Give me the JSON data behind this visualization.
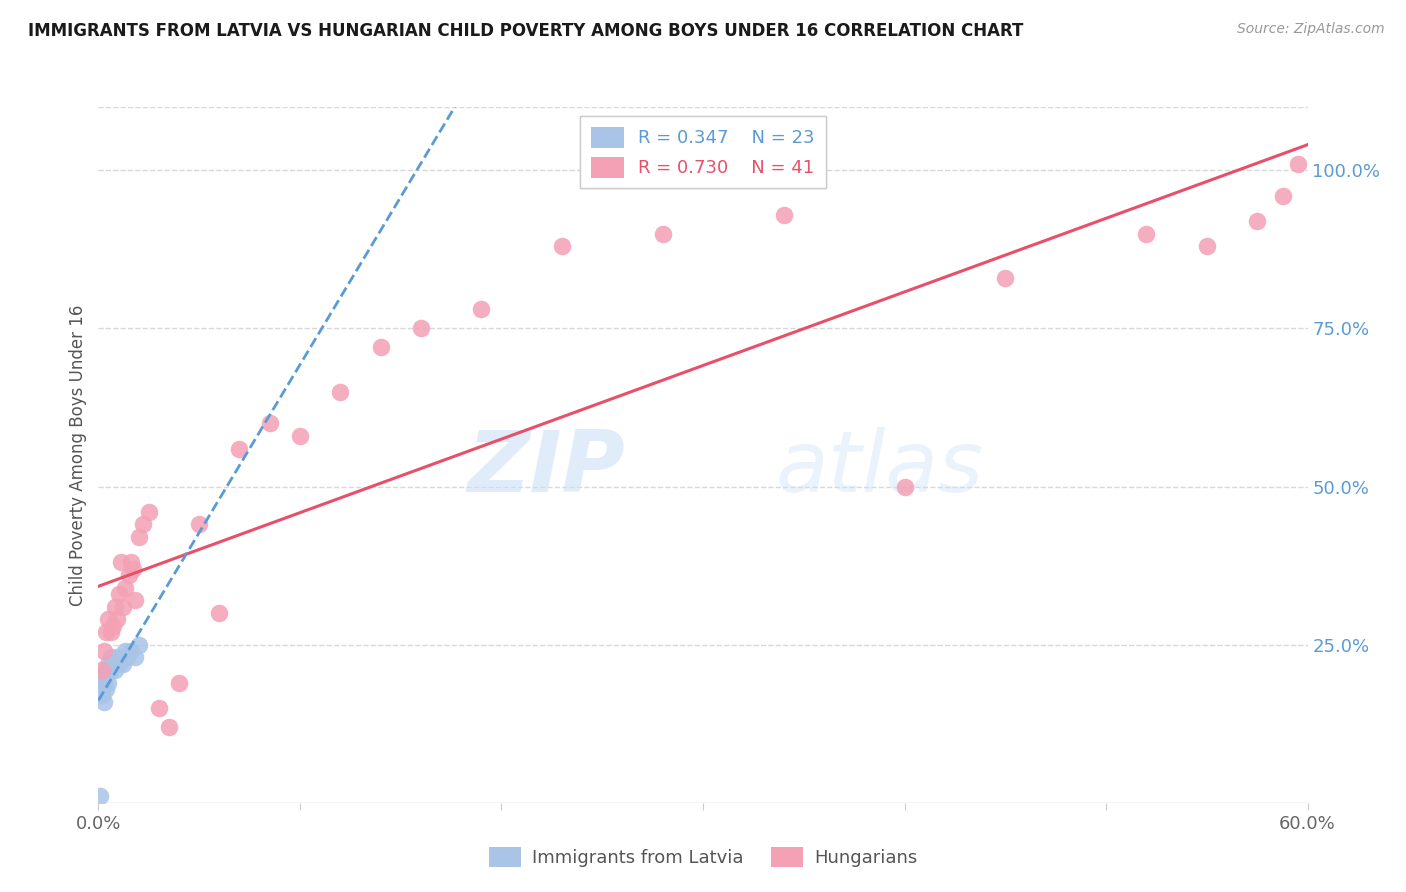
{
  "title": "IMMIGRANTS FROM LATVIA VS HUNGARIAN CHILD POVERTY AMONG BOYS UNDER 16 CORRELATION CHART",
  "source": "Source: ZipAtlas.com",
  "ylabel_left": "Child Poverty Among Boys Under 16",
  "legend_labels": [
    "Immigrants from Latvia",
    "Hungarians"
  ],
  "xlim": [
    0.0,
    0.6
  ],
  "ylim": [
    0.0,
    1.1
  ],
  "yticks_right": [
    0.25,
    0.5,
    0.75,
    1.0
  ],
  "ytick_labels_right": [
    "25.0%",
    "50.0%",
    "75.0%",
    "100.0%"
  ],
  "xticks": [
    0.0,
    0.1,
    0.2,
    0.3,
    0.4,
    0.5,
    0.6
  ],
  "xtick_labels": [
    "0.0%",
    "",
    "",
    "",
    "",
    "",
    "60.0%"
  ],
  "blue_color": "#aac4e8",
  "pink_color": "#f4a0b5",
  "blue_line_color": "#5b9bd5",
  "pink_line_color": "#e8506a",
  "blue_scatter_x": [
    0.001,
    0.002,
    0.002,
    0.003,
    0.003,
    0.004,
    0.004,
    0.005,
    0.005,
    0.006,
    0.006,
    0.007,
    0.008,
    0.009,
    0.01,
    0.011,
    0.012,
    0.013,
    0.014,
    0.016,
    0.018,
    0.02,
    0.001
  ],
  "blue_scatter_y": [
    0.19,
    0.17,
    0.2,
    0.16,
    0.19,
    0.21,
    0.18,
    0.22,
    0.19,
    0.21,
    0.23,
    0.22,
    0.21,
    0.23,
    0.22,
    0.23,
    0.22,
    0.24,
    0.23,
    0.24,
    0.23,
    0.25,
    0.01
  ],
  "pink_scatter_x": [
    0.002,
    0.003,
    0.004,
    0.005,
    0.006,
    0.007,
    0.008,
    0.009,
    0.01,
    0.011,
    0.012,
    0.013,
    0.015,
    0.016,
    0.017,
    0.018,
    0.02,
    0.022,
    0.025,
    0.03,
    0.035,
    0.04,
    0.05,
    0.06,
    0.07,
    0.085,
    0.1,
    0.12,
    0.14,
    0.16,
    0.19,
    0.23,
    0.28,
    0.34,
    0.4,
    0.45,
    0.52,
    0.55,
    0.575,
    0.588,
    0.595
  ],
  "pink_scatter_y": [
    0.21,
    0.24,
    0.27,
    0.29,
    0.27,
    0.28,
    0.31,
    0.29,
    0.33,
    0.38,
    0.31,
    0.34,
    0.36,
    0.38,
    0.37,
    0.32,
    0.42,
    0.44,
    0.46,
    0.15,
    0.12,
    0.19,
    0.44,
    0.3,
    0.56,
    0.6,
    0.58,
    0.65,
    0.72,
    0.75,
    0.78,
    0.88,
    0.9,
    0.93,
    0.5,
    0.83,
    0.9,
    0.88,
    0.92,
    0.96,
    1.01
  ],
  "watermark_zip": "ZIP",
  "watermark_atlas": "atlas",
  "background_color": "#ffffff",
  "grid_color": "#d8d8d8"
}
